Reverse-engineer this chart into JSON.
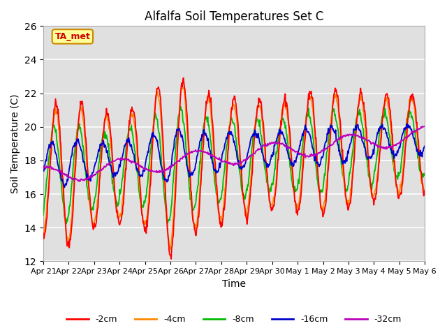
{
  "title": "Alfalfa Soil Temperatures Set C",
  "xlabel": "Time",
  "ylabel": "Soil Temperature (C)",
  "ylim": [
    12,
    26
  ],
  "yticks": [
    12,
    14,
    16,
    18,
    20,
    22,
    24,
    26
  ],
  "date_labels": [
    "Apr 21",
    "Apr 22",
    "Apr 23",
    "Apr 24",
    "Apr 25",
    "Apr 26",
    "Apr 27",
    "Apr 28",
    "Apr 29",
    "Apr 30",
    "May 1",
    "May 2",
    "May 3",
    "May 4",
    "May 5",
    "May 6"
  ],
  "line_colors": {
    "-2cm": "#ff0000",
    "-4cm": "#ff8800",
    "-8cm": "#00bb00",
    "-16cm": "#0000cc",
    "-32cm": "#bb00bb"
  },
  "legend_colors": [
    "#ff0000",
    "#ff8800",
    "#00bb00",
    "#0000cc",
    "#bb00bb"
  ],
  "legend_labels": [
    "-2cm",
    "-4cm",
    "-8cm",
    "-16cm",
    "-32cm"
  ],
  "annotation_text": "TA_met",
  "annotation_bg": "#ffff99",
  "annotation_fg": "#cc0000",
  "plot_bg": "#e0e0e0",
  "fig_bg": "#ffffff",
  "grid_color": "#ffffff",
  "n_days": 15,
  "pts_per_day": 48
}
